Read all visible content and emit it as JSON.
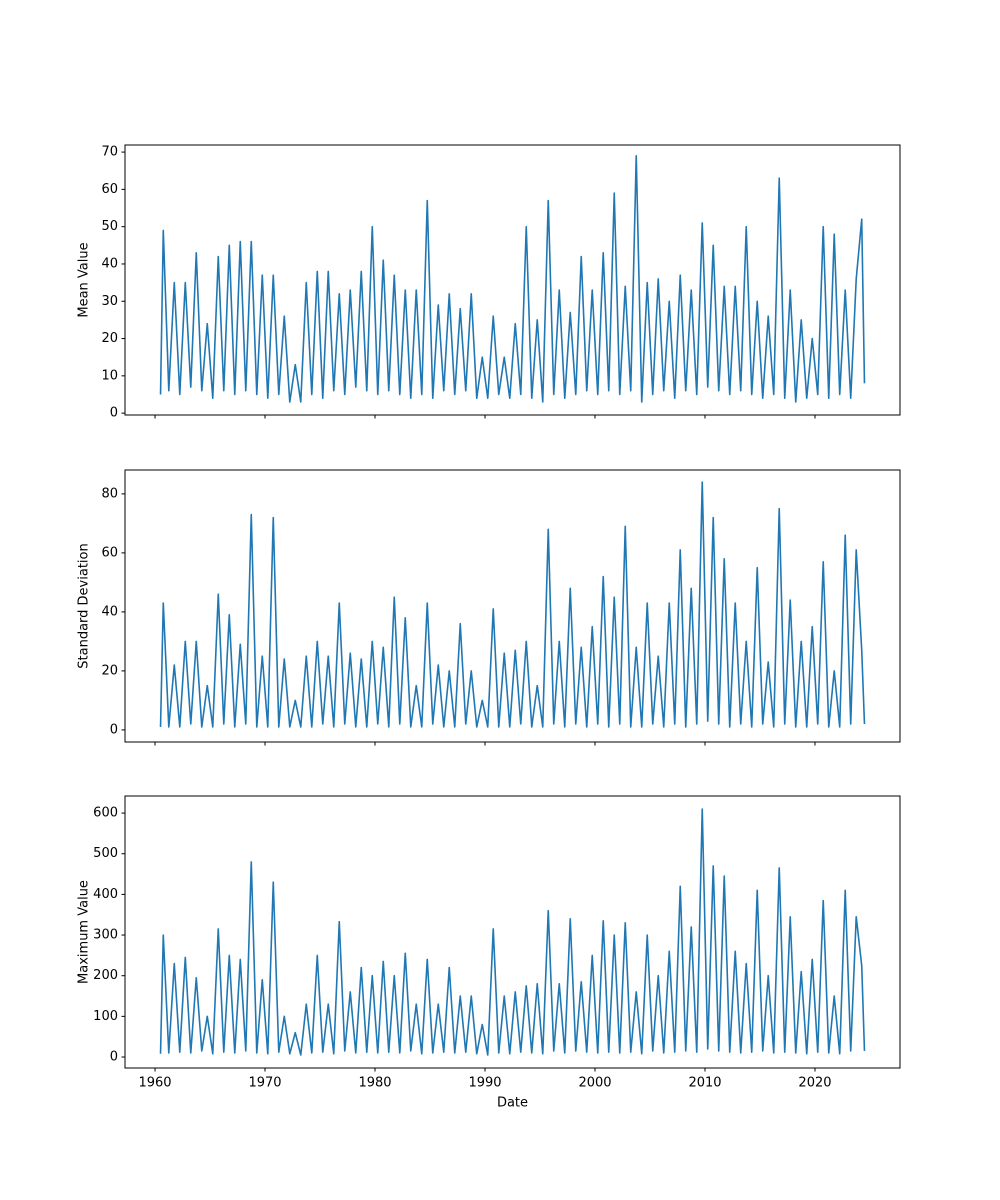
{
  "chart_data": [
    {
      "type": "line",
      "ylabel": "Mean Value",
      "color": "#1f77b4",
      "xlim": [
        1957.27,
        2027.73
      ],
      "ylim": [
        -0.5,
        71.9
      ],
      "yticks": [
        0,
        10,
        20,
        30,
        40,
        50,
        60,
        70
      ],
      "x": [
        1960.5,
        1960.75,
        1961.25,
        1961.75,
        1962.25,
        1962.75,
        1963.25,
        1963.75,
        1964.25,
        1964.75,
        1965.25,
        1965.75,
        1966.25,
        1966.75,
        1967.25,
        1967.75,
        1968.25,
        1968.75,
        1969.25,
        1969.75,
        1970.25,
        1970.75,
        1971.25,
        1971.75,
        1972.25,
        1972.75,
        1973.25,
        1973.75,
        1974.25,
        1974.75,
        1975.25,
        1975.75,
        1976.25,
        1976.75,
        1977.25,
        1977.75,
        1978.25,
        1978.75,
        1979.25,
        1979.75,
        1980.25,
        1980.75,
        1981.25,
        1981.75,
        1982.25,
        1982.75,
        1983.25,
        1983.75,
        1984.25,
        1984.75,
        1985.25,
        1985.75,
        1986.25,
        1986.75,
        1987.25,
        1987.75,
        1988.25,
        1988.75,
        1989.25,
        1989.75,
        1990.25,
        1990.75,
        1991.25,
        1991.75,
        1992.25,
        1992.75,
        1993.25,
        1993.75,
        1994.25,
        1994.75,
        1995.25,
        1995.75,
        1996.25,
        1996.75,
        1997.25,
        1997.75,
        1998.25,
        1998.75,
        1999.25,
        1999.75,
        2000.25,
        2000.75,
        2001.25,
        2001.75,
        2002.25,
        2002.75,
        2003.25,
        2003.75,
        2004.25,
        2004.75,
        2005.25,
        2005.75,
        2006.25,
        2006.75,
        2007.25,
        2007.75,
        2008.25,
        2008.75,
        2009.25,
        2009.75,
        2010.25,
        2010.75,
        2011.25,
        2011.75,
        2012.25,
        2012.75,
        2013.25,
        2013.75,
        2014.25,
        2014.75,
        2015.25,
        2015.75,
        2016.25,
        2016.75,
        2017.25,
        2017.75,
        2018.25,
        2018.75,
        2019.25,
        2019.75,
        2020.25,
        2020.75,
        2021.25,
        2021.75,
        2022.25,
        2022.75,
        2023.25,
        2023.75,
        2024.25,
        2024.5
      ],
      "values": [
        5,
        49,
        6,
        35,
        5,
        35,
        7,
        43,
        6,
        24,
        4,
        42,
        6,
        45,
        5,
        46,
        6,
        46,
        5,
        37,
        4,
        37,
        5,
        26,
        3,
        13,
        3,
        35,
        5,
        38,
        4,
        38,
        6,
        32,
        5,
        33,
        7,
        38,
        6,
        50,
        5,
        41,
        6,
        37,
        5,
        33,
        4,
        33,
        5,
        57,
        4,
        29,
        6,
        32,
        5,
        28,
        6,
        32,
        4,
        15,
        4,
        26,
        5,
        15,
        4,
        24,
        5,
        50,
        4,
        25,
        3,
        57,
        5,
        33,
        4,
        27,
        5,
        42,
        6,
        33,
        5,
        43,
        6,
        59,
        5,
        34,
        6,
        69,
        3,
        35,
        5,
        36,
        6,
        30,
        4,
        37,
        6,
        33,
        5,
        51,
        7,
        45,
        6,
        34,
        5,
        34,
        6,
        50,
        5,
        30,
        4,
        26,
        5,
        63,
        4,
        33,
        3,
        25,
        4,
        20,
        5,
        50,
        4,
        48,
        5,
        33,
        4,
        36,
        52,
        8
      ]
    },
    {
      "type": "line",
      "ylabel": "Standard Deviation",
      "color": "#1f77b4",
      "xlim": [
        1957.27,
        2027.73
      ],
      "ylim": [
        -4.1,
        88.1
      ],
      "yticks": [
        0,
        20,
        40,
        60,
        80
      ],
      "x": [
        1960.5,
        1960.75,
        1961.25,
        1961.75,
        1962.25,
        1962.75,
        1963.25,
        1963.75,
        1964.25,
        1964.75,
        1965.25,
        1965.75,
        1966.25,
        1966.75,
        1967.25,
        1967.75,
        1968.25,
        1968.75,
        1969.25,
        1969.75,
        1970.25,
        1970.75,
        1971.25,
        1971.75,
        1972.25,
        1972.75,
        1973.25,
        1973.75,
        1974.25,
        1974.75,
        1975.25,
        1975.75,
        1976.25,
        1976.75,
        1977.25,
        1977.75,
        1978.25,
        1978.75,
        1979.25,
        1979.75,
        1980.25,
        1980.75,
        1981.25,
        1981.75,
        1982.25,
        1982.75,
        1983.25,
        1983.75,
        1984.25,
        1984.75,
        1985.25,
        1985.75,
        1986.25,
        1986.75,
        1987.25,
        1987.75,
        1988.25,
        1988.75,
        1989.25,
        1989.75,
        1990.25,
        1990.75,
        1991.25,
        1991.75,
        1992.25,
        1992.75,
        1993.25,
        1993.75,
        1994.25,
        1994.75,
        1995.25,
        1995.75,
        1996.25,
        1996.75,
        1997.25,
        1997.75,
        1998.25,
        1998.75,
        1999.25,
        1999.75,
        2000.25,
        2000.75,
        2001.25,
        2001.75,
        2002.25,
        2002.75,
        2003.25,
        2003.75,
        2004.25,
        2004.75,
        2005.25,
        2005.75,
        2006.25,
        2006.75,
        2007.25,
        2007.75,
        2008.25,
        2008.75,
        2009.25,
        2009.75,
        2010.25,
        2010.75,
        2011.25,
        2011.75,
        2012.25,
        2012.75,
        2013.25,
        2013.75,
        2014.25,
        2014.75,
        2015.25,
        2015.75,
        2016.25,
        2016.75,
        2017.25,
        2017.75,
        2018.25,
        2018.75,
        2019.25,
        2019.75,
        2020.25,
        2020.75,
        2021.25,
        2021.75,
        2022.25,
        2022.75,
        2023.25,
        2023.75,
        2024.25,
        2024.5
      ],
      "values": [
        1,
        43,
        1,
        22,
        1,
        30,
        2,
        30,
        1,
        15,
        1,
        46,
        2,
        39,
        1,
        29,
        2,
        73,
        1,
        25,
        1,
        72,
        1,
        24,
        1,
        10,
        1,
        25,
        1,
        30,
        2,
        25,
        1,
        43,
        2,
        26,
        1,
        24,
        1,
        30,
        2,
        28,
        1,
        45,
        2,
        38,
        1,
        15,
        1,
        43,
        2,
        22,
        1,
        20,
        1,
        36,
        2,
        20,
        1,
        10,
        1,
        41,
        1,
        26,
        1,
        27,
        2,
        30,
        1,
        15,
        1,
        68,
        2,
        30,
        1,
        48,
        2,
        28,
        1,
        35,
        2,
        52,
        1,
        45,
        2,
        69,
        1,
        28,
        1,
        43,
        2,
        25,
        1,
        43,
        2,
        61,
        1,
        48,
        2,
        84,
        3,
        72,
        2,
        58,
        1,
        43,
        2,
        30,
        1,
        55,
        2,
        23,
        1,
        75,
        2,
        44,
        1,
        30,
        1,
        35,
        2,
        57,
        1,
        20,
        1,
        66,
        2,
        61,
        27,
        2
      ]
    },
    {
      "type": "line",
      "ylabel": "Maximum Value",
      "xlabel": "Date",
      "color": "#1f77b4",
      "xlim": [
        1957.27,
        2027.73
      ],
      "xticks": [
        1960,
        1970,
        1980,
        1990,
        2000,
        2010,
        2020
      ],
      "ylim": [
        -27,
        642
      ],
      "yticks": [
        0,
        100,
        200,
        300,
        400,
        500,
        600
      ],
      "x": [
        1960.5,
        1960.75,
        1961.25,
        1961.75,
        1962.25,
        1962.75,
        1963.25,
        1963.75,
        1964.25,
        1964.75,
        1965.25,
        1965.75,
        1966.25,
        1966.75,
        1967.25,
        1967.75,
        1968.25,
        1968.75,
        1969.25,
        1969.75,
        1970.25,
        1970.75,
        1971.25,
        1971.75,
        1972.25,
        1972.75,
        1973.25,
        1973.75,
        1974.25,
        1974.75,
        1975.25,
        1975.75,
        1976.25,
        1976.75,
        1977.25,
        1977.75,
        1978.25,
        1978.75,
        1979.25,
        1979.75,
        1980.25,
        1980.75,
        1981.25,
        1981.75,
        1982.25,
        1982.75,
        1983.25,
        1983.75,
        1984.25,
        1984.75,
        1985.25,
        1985.75,
        1986.25,
        1986.75,
        1987.25,
        1987.75,
        1988.25,
        1988.75,
        1989.25,
        1989.75,
        1990.25,
        1990.75,
        1991.25,
        1991.75,
        1992.25,
        1992.75,
        1993.25,
        1993.75,
        1994.25,
        1994.75,
        1995.25,
        1995.75,
        1996.25,
        1996.75,
        1997.25,
        1997.75,
        1998.25,
        1998.75,
        1999.25,
        1999.75,
        2000.25,
        2000.75,
        2001.25,
        2001.75,
        2002.25,
        2002.75,
        2003.25,
        2003.75,
        2004.25,
        2004.75,
        2005.25,
        2005.75,
        2006.25,
        2006.75,
        2007.25,
        2007.75,
        2008.25,
        2008.75,
        2009.25,
        2009.75,
        2010.25,
        2010.75,
        2011.25,
        2011.75,
        2012.25,
        2012.75,
        2013.25,
        2013.75,
        2014.25,
        2014.75,
        2015.25,
        2015.75,
        2016.25,
        2016.75,
        2017.25,
        2017.75,
        2018.25,
        2018.75,
        2019.25,
        2019.75,
        2020.25,
        2020.75,
        2021.25,
        2021.75,
        2022.25,
        2022.75,
        2023.25,
        2023.75,
        2024.25,
        2024.5
      ],
      "values": [
        8,
        300,
        10,
        230,
        12,
        245,
        10,
        195,
        15,
        100,
        8,
        315,
        12,
        250,
        10,
        240,
        15,
        480,
        10,
        190,
        8,
        430,
        12,
        100,
        8,
        60,
        5,
        130,
        10,
        250,
        12,
        130,
        8,
        333,
        15,
        160,
        10,
        220,
        12,
        200,
        10,
        235,
        12,
        200,
        10,
        255,
        15,
        130,
        8,
        240,
        10,
        130,
        12,
        220,
        10,
        150,
        12,
        150,
        8,
        80,
        5,
        315,
        10,
        150,
        8,
        160,
        12,
        175,
        10,
        180,
        8,
        360,
        15,
        180,
        10,
        340,
        15,
        185,
        12,
        250,
        10,
        335,
        12,
        300,
        10,
        330,
        12,
        160,
        8,
        300,
        15,
        200,
        10,
        260,
        12,
        420,
        15,
        320,
        12,
        610,
        20,
        470,
        15,
        445,
        12,
        260,
        10,
        230,
        12,
        410,
        15,
        200,
        10,
        465,
        12,
        345,
        10,
        210,
        8,
        240,
        12,
        385,
        10,
        150,
        8,
        410,
        15,
        345,
        225,
        15
      ]
    }
  ]
}
